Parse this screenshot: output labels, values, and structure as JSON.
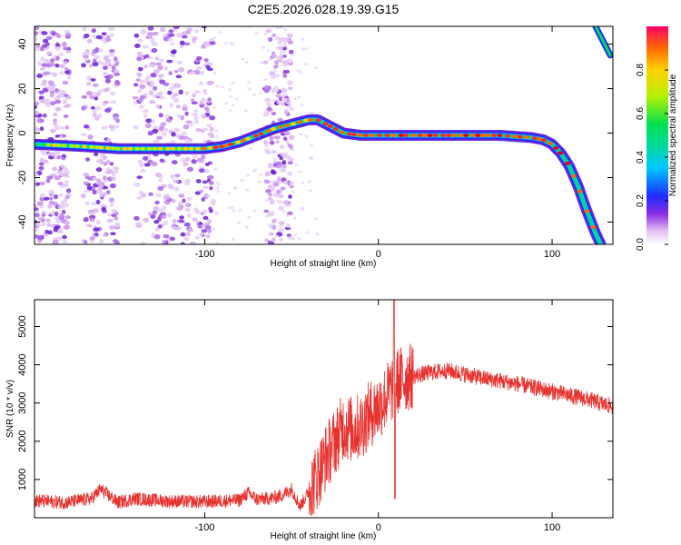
{
  "chart_data": [
    {
      "type": "heatmap",
      "title": "C2E5.2026.028.19.39.G15",
      "xlabel": "Height of straight line (km)",
      "ylabel": "Frequency (Hz)",
      "xlim": [
        -198,
        135
      ],
      "ylim": [
        -50,
        48
      ],
      "xticks": [
        -100,
        0,
        100
      ],
      "xtick_labels": [
        "-100",
        "0",
        "100"
      ],
      "yticks": [
        -40,
        -20,
        0,
        20,
        40
      ],
      "ytick_labels": [
        "-40",
        "-20",
        "0",
        "20",
        "40"
      ],
      "ridge": {
        "x": [
          -198,
          -170,
          -150,
          -130,
          -110,
          -100,
          -90,
          -80,
          -70,
          -60,
          -50,
          -40,
          -35,
          -30,
          -20,
          -10,
          0,
          10,
          30,
          50,
          70,
          88,
          95,
          100,
          105,
          110,
          115,
          120,
          125,
          128
        ],
        "y": [
          -5,
          -6,
          -7,
          -7,
          -7,
          -7,
          -6,
          -4,
          -1,
          2,
          4,
          6,
          6,
          4,
          0,
          -1,
          -1,
          -1,
          -1,
          -1,
          -1,
          -2,
          -3,
          -5,
          -9,
          -15,
          -24,
          -35,
          -45,
          -50
        ]
      },
      "colorbar": {
        "label": "Normalized spectral amplitude",
        "range": [
          0.0,
          1.0
        ],
        "ticks": [
          0.0,
          0.2,
          0.4,
          0.6,
          0.8
        ],
        "tick_labels": [
          "0.0",
          "0.2",
          "0.4",
          "0.6",
          "0.8"
        ]
      }
    },
    {
      "type": "line",
      "xlabel": "Height of straight line (km)",
      "ylabel": "SNR (10 * v/v)",
      "xlim": [
        -198,
        135
      ],
      "ylim": [
        0,
        5700
      ],
      "xticks": [
        -100,
        0,
        100
      ],
      "xtick_labels": [
        "-100",
        "0",
        "100"
      ],
      "yticks": [
        1000,
        2000,
        3000,
        4000,
        5000
      ],
      "ytick_labels": [
        "1000",
        "2000",
        "3000",
        "4000",
        "5000"
      ],
      "series": [
        {
          "name": "SNR",
          "color": "#e8322f",
          "x": [
            -198,
            -180,
            -165,
            -160,
            -150,
            -140,
            -120,
            -100,
            -80,
            -75,
            -70,
            -60,
            -55,
            -50,
            -45,
            -40,
            -35,
            -30,
            -25,
            -20,
            -15,
            -10,
            -5,
            0,
            5,
            8,
            10,
            12,
            20,
            30,
            40,
            60,
            80,
            100,
            120,
            135
          ],
          "y": [
            450,
            400,
            500,
            750,
            400,
            500,
            430,
            420,
            460,
            650,
            480,
            520,
            600,
            750,
            300,
            700,
            1100,
            1600,
            2000,
            2400,
            2300,
            2400,
            2700,
            2900,
            3200,
            3400,
            3500,
            3600,
            3700,
            3800,
            3850,
            3650,
            3500,
            3300,
            3100,
            2900
          ]
        }
      ]
    }
  ]
}
